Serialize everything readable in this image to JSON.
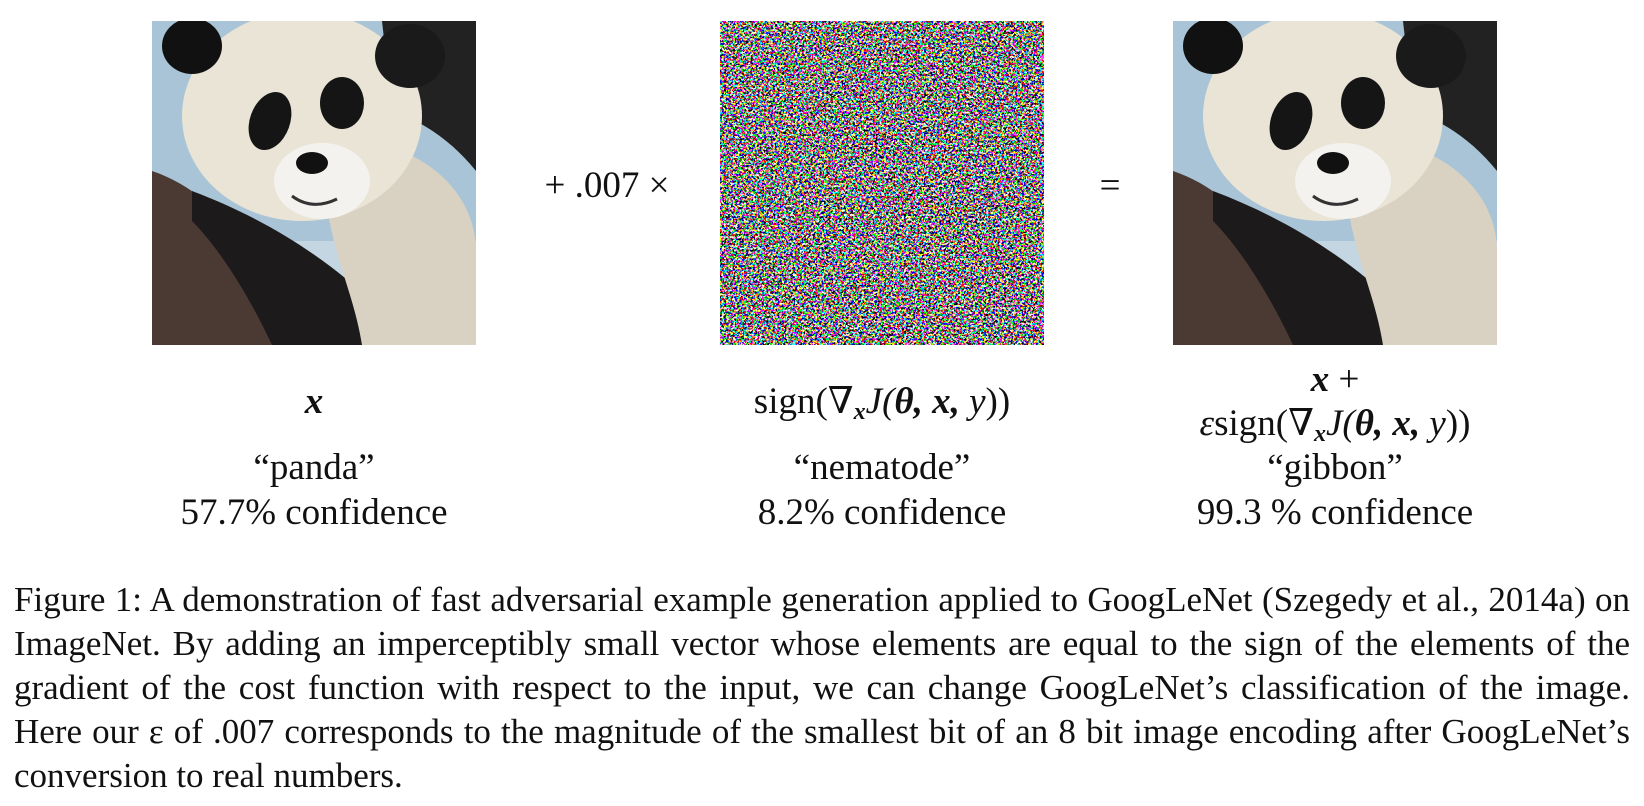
{
  "figure": {
    "operators": [
      "+ .007 ×",
      "="
    ],
    "panels": [
      {
        "label": [
          {
            "text": "x",
            "style": "m"
          }
        ],
        "class": "“panda”",
        "confidence": "57.7% confidence"
      },
      {
        "label": [
          {
            "text": "sign(∇",
            "style": ""
          },
          {
            "text": "x",
            "style": "sub"
          },
          {
            "text": "J(",
            "style": "i"
          },
          {
            "text": "θ, x, ",
            "style": "m"
          },
          {
            "text": "y",
            "style": "i"
          },
          {
            "text": "))",
            "style": ""
          }
        ],
        "class": "“nematode”",
        "confidence": "8.2% confidence"
      },
      {
        "label_top": [
          {
            "text": "x",
            "style": "m"
          },
          {
            "text": " +",
            "style": ""
          }
        ],
        "label": [
          {
            "text": "ε",
            "style": "i"
          },
          {
            "text": "sign(∇",
            "style": ""
          },
          {
            "text": "x",
            "style": "sub"
          },
          {
            "text": "J(",
            "style": "i"
          },
          {
            "text": "θ, x, ",
            "style": "m"
          },
          {
            "text": "y",
            "style": "i"
          },
          {
            "text": "))",
            "style": ""
          }
        ],
        "class": "“gibbon”",
        "confidence": "99.3 % confidence"
      }
    ],
    "caption": "Figure 1:  A demonstration of fast adversarial example generation applied to GoogLeNet (Szegedy et al., 2014a) on ImageNet. By adding an imperceptibly small vector whose elements are equal to the sign of the elements of the gradient of the cost function with respect to the input, we can change GoogLeNet’s classification of the image. Here our ε of .007 corresponds to the magnitude of the smallest bit of an 8 bit image encoding after GoogLeNet’s conversion to real numbers."
  }
}
